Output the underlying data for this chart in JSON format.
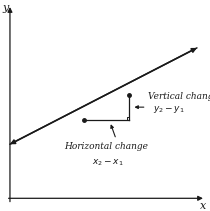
{
  "bg_color": "#ffffff",
  "line_color": "#1a1a1a",
  "axis_color": "#1a1a1a",
  "xlim": [
    -0.3,
    6.0
  ],
  "ylim": [
    -0.5,
    3.8
  ],
  "line_x": [
    -0.2,
    5.8
  ],
  "line_y": [
    0.8,
    2.9
  ],
  "p1": [
    2.2,
    1.35
  ],
  "p2": [
    3.6,
    1.88
  ],
  "xlabel": "x",
  "ylabel": "y",
  "label_vertical": "Vertical change",
  "label_y2y1": "$y_2 - y_1$",
  "label_horizontal": "Horizontal change",
  "label_x2x1": "$x_2 - x_1$",
  "font_size_label": 6.5,
  "font_size_axis": 8
}
